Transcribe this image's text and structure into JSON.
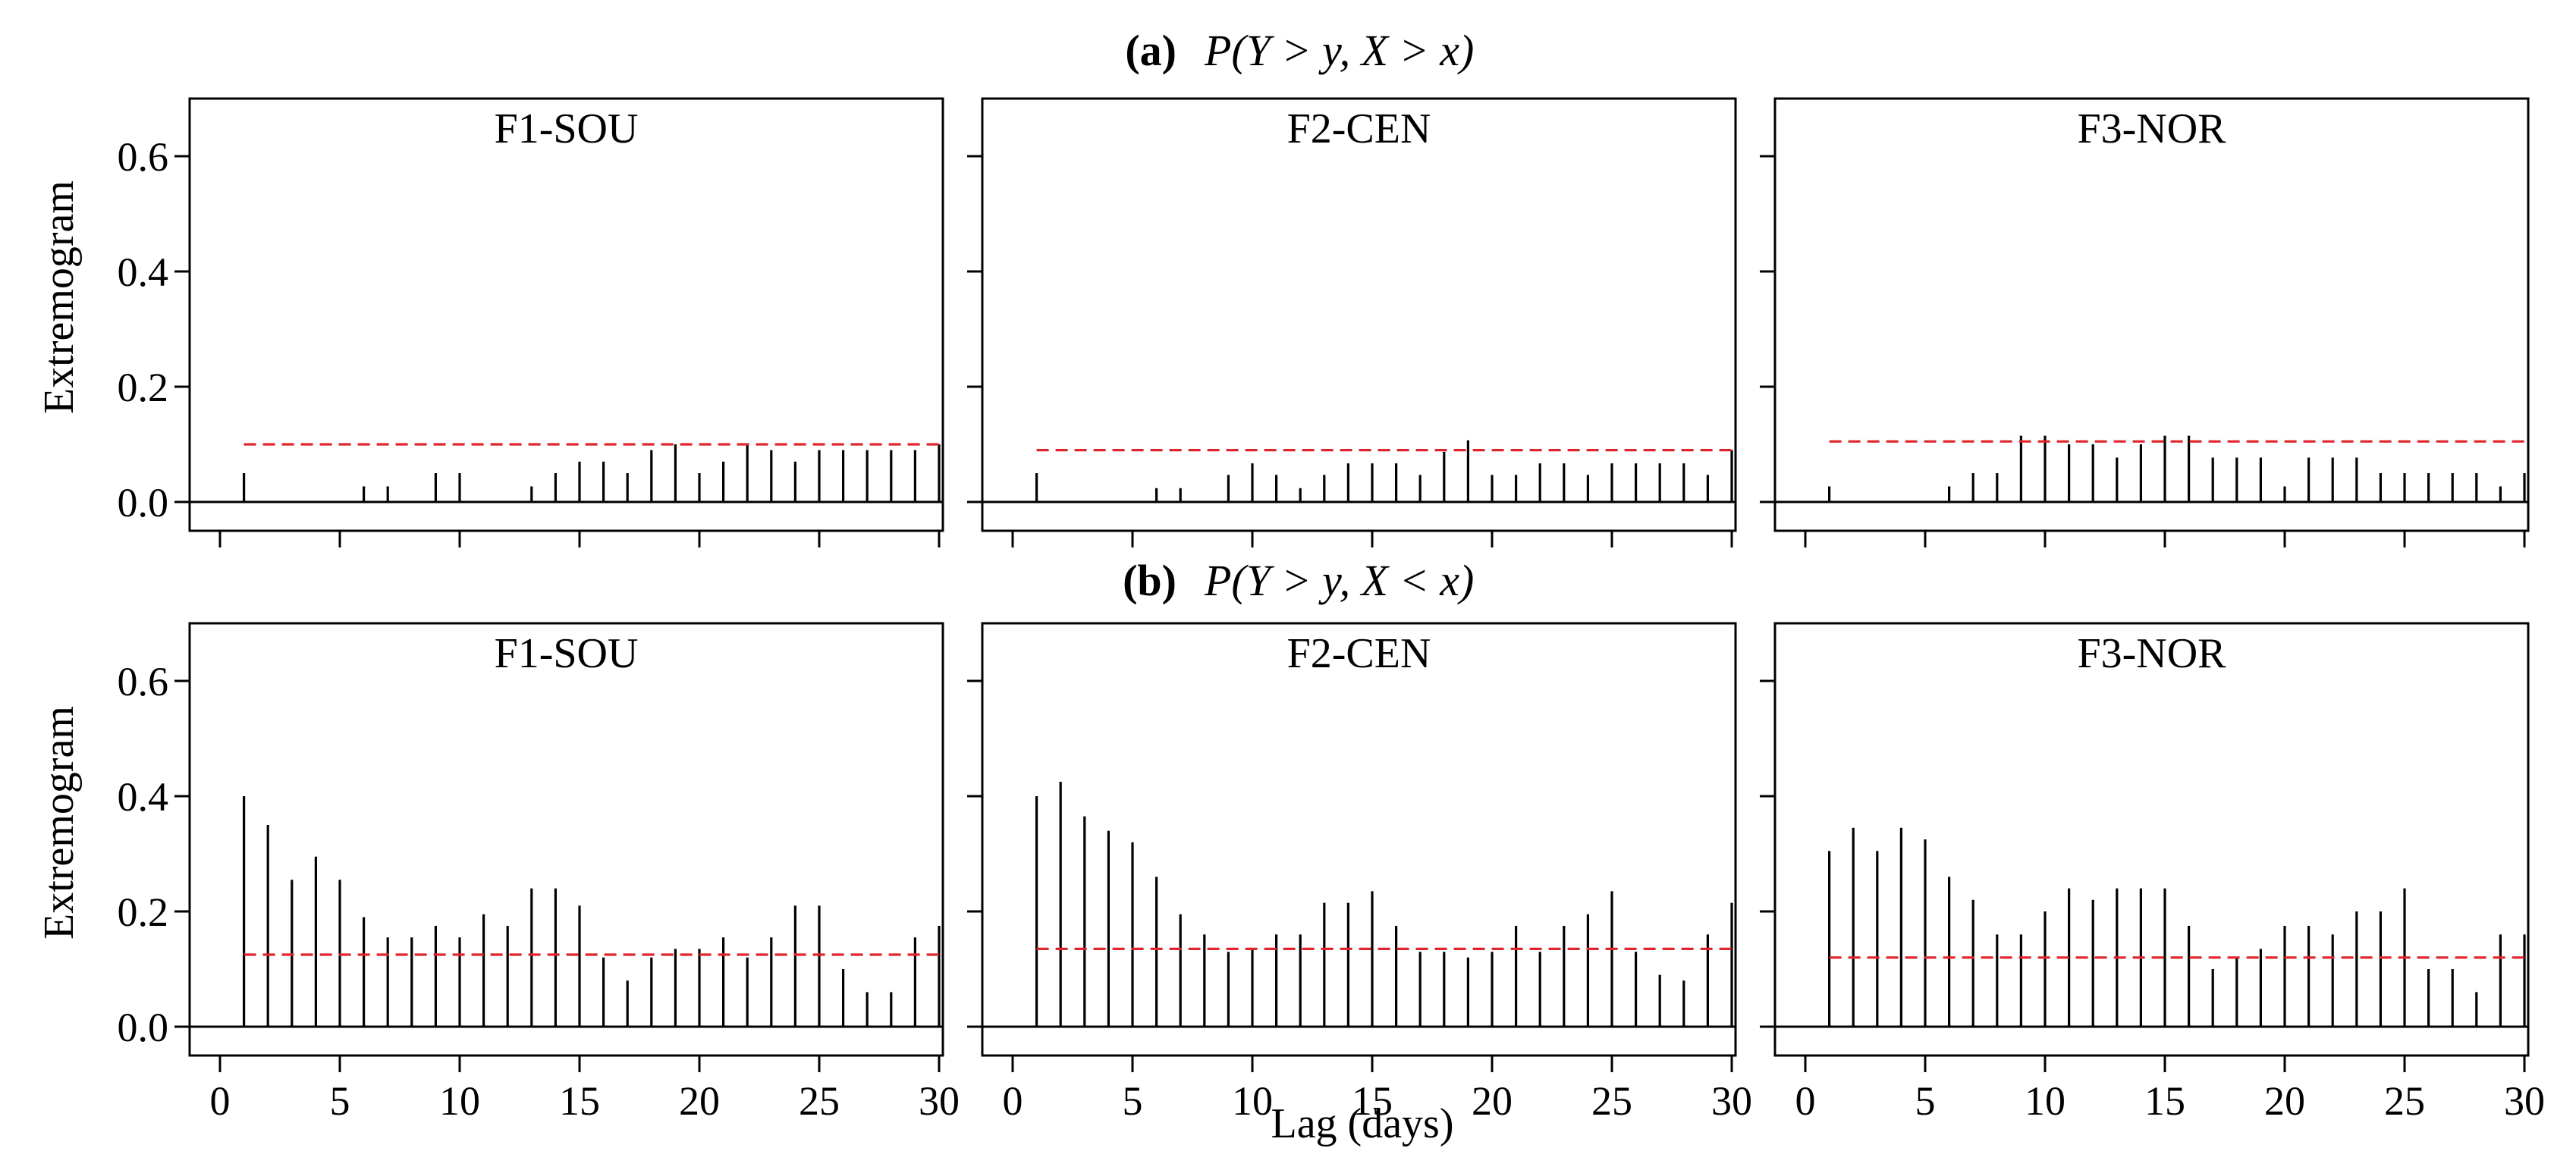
{
  "chart_data": [
    {
      "type": "bar",
      "row": "a",
      "title": "F1-SOU",
      "row_label": "(a)",
      "row_formula": "P(Y > y, X > x)",
      "ylabel": "Extremogram",
      "xlim": [
        0,
        30
      ],
      "ylim": [
        -0.05,
        0.7
      ],
      "xticks": [
        0,
        5,
        10,
        15,
        20,
        25,
        30
      ],
      "yticks": [
        0.0,
        0.2,
        0.4,
        0.6
      ],
      "lags": [
        1,
        2,
        3,
        4,
        5,
        6,
        7,
        8,
        9,
        10,
        11,
        12,
        13,
        14,
        15,
        16,
        17,
        18,
        19,
        20,
        21,
        22,
        23,
        24,
        25,
        26,
        27,
        28,
        29,
        30
      ],
      "values": [
        0.05,
        0,
        0,
        0,
        0,
        0.027,
        0.027,
        0,
        0.05,
        0.05,
        0,
        0,
        0.027,
        0.05,
        0.07,
        0.07,
        0.05,
        0.09,
        0.1,
        0.05,
        0.07,
        0.1,
        0.09,
        0.07,
        0.09,
        0.09,
        0.09,
        0.09,
        0.09,
        0.1
      ],
      "threshold": 0.1
    },
    {
      "type": "bar",
      "row": "a",
      "title": "F2-CEN",
      "xlim": [
        0,
        30
      ],
      "ylim": [
        -0.05,
        0.7
      ],
      "lags": [
        1,
        2,
        3,
        4,
        5,
        6,
        7,
        8,
        9,
        10,
        11,
        12,
        13,
        14,
        15,
        16,
        17,
        18,
        19,
        20,
        21,
        22,
        23,
        24,
        25,
        26,
        27,
        28,
        29,
        30
      ],
      "values": [
        0.05,
        0,
        0,
        0,
        0,
        0.024,
        0.024,
        0,
        0.047,
        0.067,
        0.047,
        0.024,
        0.047,
        0.067,
        0.067,
        0.067,
        0.047,
        0.087,
        0.107,
        0.047,
        0.047,
        0.067,
        0.067,
        0.047,
        0.067,
        0.067,
        0.067,
        0.067,
        0.047,
        0.09
      ],
      "threshold": 0.09
    },
    {
      "type": "bar",
      "row": "a",
      "title": "F3-NOR",
      "xlim": [
        0,
        30
      ],
      "ylim": [
        -0.05,
        0.7
      ],
      "lags": [
        1,
        2,
        3,
        4,
        5,
        6,
        7,
        8,
        9,
        10,
        11,
        12,
        13,
        14,
        15,
        16,
        17,
        18,
        19,
        20,
        21,
        22,
        23,
        24,
        25,
        26,
        27,
        28,
        29,
        30
      ],
      "values": [
        0.027,
        0,
        0,
        0,
        0,
        0.027,
        0.05,
        0.05,
        0.115,
        0.115,
        0.1,
        0.1,
        0.077,
        0.1,
        0.115,
        0.115,
        0.077,
        0.077,
        0.077,
        0.027,
        0.077,
        0.077,
        0.077,
        0.05,
        0.05,
        0.05,
        0.05,
        0.05,
        0.027,
        0.05
      ],
      "threshold": 0.105
    },
    {
      "type": "bar",
      "row": "b",
      "title": "F1-SOU",
      "row_label": "(b)",
      "row_formula": "P(Y > y, X < x)",
      "ylabel": "Extremogram",
      "xlim": [
        0,
        30
      ],
      "ylim": [
        -0.05,
        0.7
      ],
      "lags": [
        1,
        2,
        3,
        4,
        5,
        6,
        7,
        8,
        9,
        10,
        11,
        12,
        13,
        14,
        15,
        16,
        17,
        18,
        19,
        20,
        21,
        22,
        23,
        24,
        25,
        26,
        27,
        28,
        29,
        30
      ],
      "values": [
        0.4,
        0.35,
        0.255,
        0.295,
        0.255,
        0.19,
        0.155,
        0.155,
        0.175,
        0.155,
        0.195,
        0.175,
        0.24,
        0.24,
        0.21,
        0.12,
        0.08,
        0.12,
        0.135,
        0.135,
        0.155,
        0.12,
        0.155,
        0.21,
        0.21,
        0.1,
        0.06,
        0.06,
        0.155,
        0.175
      ],
      "threshold": 0.125
    },
    {
      "type": "bar",
      "row": "b",
      "title": "F2-CEN",
      "xlim": [
        0,
        30
      ],
      "ylim": [
        -0.05,
        0.7
      ],
      "lags": [
        1,
        2,
        3,
        4,
        5,
        6,
        7,
        8,
        9,
        10,
        11,
        12,
        13,
        14,
        15,
        16,
        17,
        18,
        19,
        20,
        21,
        22,
        23,
        24,
        25,
        26,
        27,
        28,
        29,
        30
      ],
      "values": [
        0.4,
        0.425,
        0.365,
        0.34,
        0.32,
        0.26,
        0.195,
        0.16,
        0.13,
        0.135,
        0.16,
        0.16,
        0.215,
        0.215,
        0.235,
        0.175,
        0.13,
        0.13,
        0.12,
        0.13,
        0.175,
        0.13,
        0.175,
        0.195,
        0.235,
        0.13,
        0.09,
        0.08,
        0.16,
        0.215
      ],
      "threshold": 0.135
    },
    {
      "type": "bar",
      "row": "b",
      "title": "F3-NOR",
      "xlim": [
        0,
        30
      ],
      "ylim": [
        -0.05,
        0.7
      ],
      "lags": [
        1,
        2,
        3,
        4,
        5,
        6,
        7,
        8,
        9,
        10,
        11,
        12,
        13,
        14,
        15,
        16,
        17,
        18,
        19,
        20,
        21,
        22,
        23,
        24,
        25,
        26,
        27,
        28,
        29,
        30
      ],
      "values": [
        0.305,
        0.345,
        0.305,
        0.345,
        0.325,
        0.26,
        0.22,
        0.16,
        0.16,
        0.2,
        0.24,
        0.22,
        0.24,
        0.24,
        0.24,
        0.175,
        0.1,
        0.12,
        0.135,
        0.175,
        0.175,
        0.16,
        0.2,
        0.2,
        0.24,
        0.1,
        0.1,
        0.06,
        0.16,
        0.16
      ],
      "threshold": 0.12
    }
  ],
  "xlabel": "Lag (days)",
  "colors": {
    "threshold": "#e0242b",
    "bars": "#000000",
    "axes": "#000000"
  }
}
